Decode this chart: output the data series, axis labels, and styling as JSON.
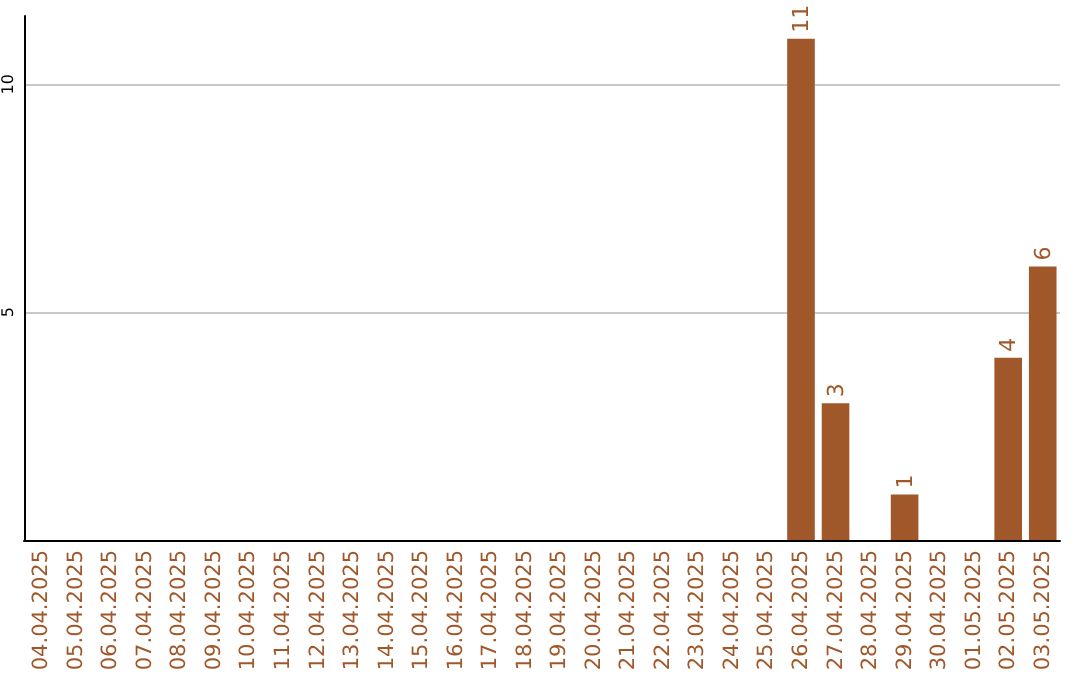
{
  "chart_data": {
    "type": "bar",
    "categories": [
      "04.04.2025",
      "05.04.2025",
      "06.04.2025",
      "07.04.2025",
      "08.04.2025",
      "09.04.2025",
      "10.04.2025",
      "11.04.2025",
      "12.04.2025",
      "13.04.2025",
      "14.04.2025",
      "15.04.2025",
      "16.04.2025",
      "17.04.2025",
      "18.04.2025",
      "19.04.2025",
      "20.04.2025",
      "21.04.2025",
      "22.04.2025",
      "23.04.2025",
      "24.04.2025",
      "25.04.2025",
      "26.04.2025",
      "27.04.2025",
      "28.04.2025",
      "29.04.2025",
      "30.04.2025",
      "01.05.2025",
      "02.05.2025",
      "03.05.2025"
    ],
    "values": [
      0,
      0,
      0,
      0,
      0,
      0,
      0,
      0,
      0,
      0,
      0,
      0,
      0,
      0,
      0,
      0,
      0,
      0,
      0,
      0,
      0,
      0,
      11,
      3,
      0,
      1,
      0,
      0,
      4,
      6
    ],
    "value_labels": [
      null,
      null,
      null,
      null,
      null,
      null,
      null,
      null,
      null,
      null,
      null,
      null,
      null,
      null,
      null,
      null,
      null,
      null,
      null,
      null,
      null,
      null,
      "11",
      "3",
      null,
      "1",
      null,
      null,
      "4",
      "6"
    ],
    "color": "#a0582a",
    "ylim": [
      0,
      11.5
    ],
    "yticks": [
      5,
      10
    ],
    "grid": "y"
  }
}
